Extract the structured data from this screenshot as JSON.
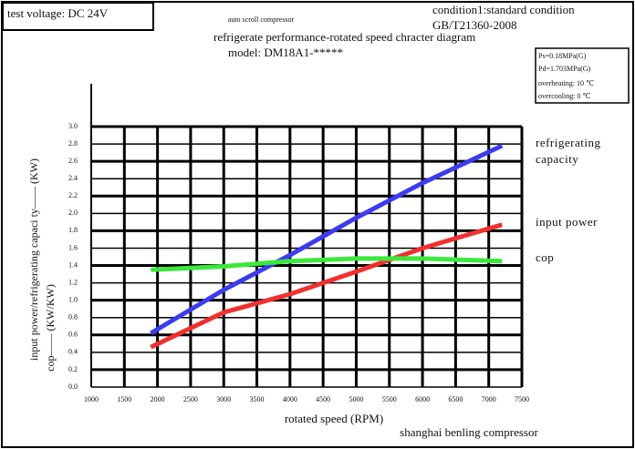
{
  "chart_data": {
    "type": "line",
    "title": "refrigerate performance-rotated speed chracter diagram",
    "subtitle": "auto scroll compressor",
    "model": "model: DM18A1-*****",
    "voltage": "test voltage: DC 24V",
    "condition": "condition1:standard condition",
    "standard": "GB/T21360-2008",
    "params": [
      "Ps=0.18MPa(G)",
      "Pd=1.703MPa(G)",
      "overheating: 10 ℃",
      "overcooling: 0 ℃"
    ],
    "ylabel": "input power/refrigerating capaci ty—— (KW)",
    "ylabel2": "cop—— (KW/KW)",
    "xlabel": "rotated speed (RPM)",
    "footer": "shanghai benling compressor",
    "x": [
      1900,
      3000,
      4000,
      5000,
      6000,
      7200
    ],
    "series": [
      {
        "name": "refrigerating capacity",
        "color": "#3b3bf0",
        "values": [
          0.62,
          1.12,
          1.52,
          1.95,
          2.35,
          2.78
        ]
      },
      {
        "name": "input power",
        "color": "#f03030",
        "values": [
          0.46,
          0.86,
          1.07,
          1.33,
          1.6,
          1.87
        ]
      },
      {
        "name": "cop",
        "color": "#3ce83c",
        "values": [
          1.35,
          1.39,
          1.45,
          1.48,
          1.48,
          1.45
        ]
      }
    ],
    "xlim": [
      1000,
      7500
    ],
    "xticks": [
      1000,
      1500,
      2000,
      2500,
      3000,
      3500,
      4000,
      4500,
      5000,
      5500,
      6000,
      6500,
      7000,
      7500
    ],
    "ylim": [
      0,
      3
    ],
    "yticks": [
      {
        "value": 0,
        "label": "0.0"
      },
      {
        "value": 0.2,
        "label": "0.2"
      },
      {
        "value": 0.4,
        "label": "0.4"
      },
      {
        "value": 0.6,
        "label": "0.6"
      },
      {
        "value": 0.8,
        "label": "0.8"
      },
      {
        "value": 1,
        "label": "1.0"
      },
      {
        "value": 1.2,
        "label": "1.2"
      },
      {
        "value": 1.4,
        "label": "1.4"
      },
      {
        "value": 1.6,
        "label": "1.6"
      },
      {
        "value": 1.8,
        "label": "1.8"
      },
      {
        "value": 2,
        "label": "2.0"
      },
      {
        "value": 2.2,
        "label": "2.2"
      },
      {
        "value": 2.4,
        "label": "2.4"
      },
      {
        "value": 2.6,
        "label": "2.6"
      },
      {
        "value": 2.8,
        "label": "2.8"
      },
      {
        "value": 3,
        "label": "3.0"
      }
    ],
    "grid": true
  }
}
